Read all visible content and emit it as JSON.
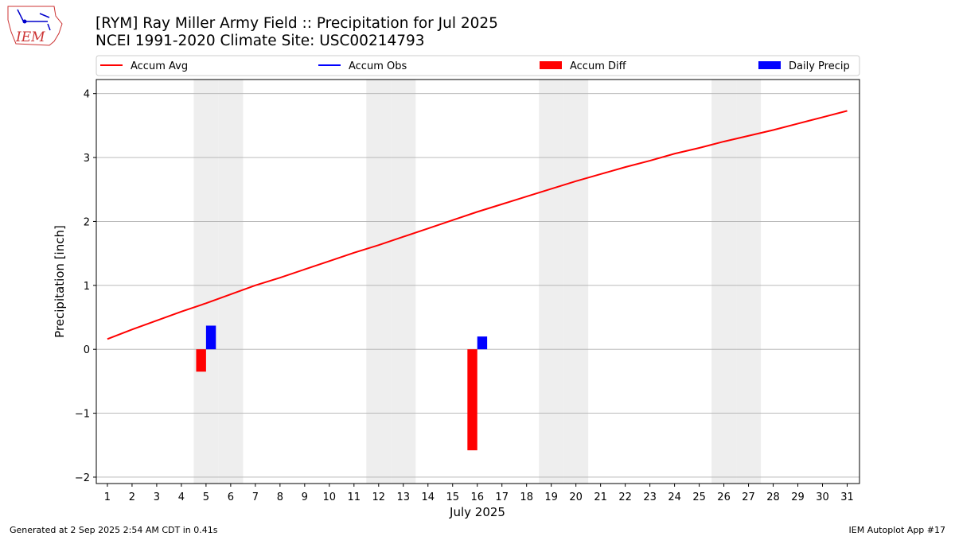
{
  "chart_data": {
    "type": "line",
    "title": "[RYM] Ray Miller Army Field :: Precipitation for Jul 2025",
    "subtitle": "NCEI 1991-2020 Climate Site: USC00214793",
    "xlabel": "July 2025",
    "ylabel": "Precipitation [inch]",
    "x": [
      1,
      2,
      3,
      4,
      5,
      6,
      7,
      8,
      9,
      10,
      11,
      12,
      13,
      14,
      15,
      16,
      17,
      18,
      19,
      20,
      21,
      22,
      23,
      24,
      25,
      26,
      27,
      28,
      29,
      30,
      31
    ],
    "series": [
      {
        "name": "Accum Avg",
        "type": "line",
        "color": "#ff0000",
        "values": [
          0.16,
          0.31,
          0.45,
          0.59,
          0.72,
          0.86,
          1.0,
          1.12,
          1.25,
          1.38,
          1.51,
          1.63,
          1.76,
          1.89,
          2.02,
          2.15,
          2.27,
          2.39,
          2.51,
          2.63,
          2.74,
          2.85,
          2.95,
          3.06,
          3.15,
          3.25,
          3.34,
          3.43,
          3.53,
          3.63,
          3.73
        ]
      },
      {
        "name": "Accum Obs",
        "type": "line",
        "color": "#0000ff",
        "values": [
          null,
          null,
          null,
          null,
          null,
          null,
          null,
          null,
          null,
          null,
          null,
          null,
          null,
          null,
          null,
          null,
          null,
          null,
          null,
          null,
          null,
          null,
          null,
          null,
          null,
          null,
          null,
          null,
          null,
          null,
          null
        ]
      },
      {
        "name": "Accum Diff",
        "type": "bar",
        "color": "#ff0000",
        "values": [
          null,
          null,
          null,
          null,
          -0.35,
          null,
          null,
          null,
          null,
          null,
          null,
          null,
          null,
          null,
          null,
          -1.58,
          null,
          null,
          null,
          null,
          null,
          null,
          null,
          null,
          null,
          null,
          null,
          null,
          null,
          null,
          null
        ]
      },
      {
        "name": "Daily Precip",
        "type": "bar",
        "color": "#0000ff",
        "values": [
          null,
          null,
          null,
          null,
          0.37,
          null,
          null,
          null,
          null,
          null,
          null,
          null,
          null,
          null,
          null,
          0.2,
          null,
          null,
          null,
          null,
          null,
          null,
          null,
          null,
          null,
          null,
          null,
          null,
          null,
          null,
          null
        ]
      }
    ],
    "shaded_days": [
      5,
      6,
      12,
      13,
      19,
      20,
      26,
      27
    ],
    "xlim": [
      0.55,
      31.5
    ],
    "xticks": [
      1,
      2,
      3,
      4,
      5,
      6,
      7,
      8,
      9,
      10,
      11,
      12,
      13,
      14,
      15,
      16,
      17,
      18,
      19,
      20,
      21,
      22,
      23,
      24,
      25,
      26,
      27,
      28,
      29,
      30,
      31
    ],
    "ylim": [
      -2.1,
      4.22
    ],
    "yticks": [
      {
        "value": -2,
        "label": "−2"
      },
      {
        "value": -1,
        "label": "−1"
      },
      0,
      1,
      2,
      3,
      4
    ],
    "grid": true,
    "legend": "top",
    "logo": "IEM",
    "footer_left": "Generated at 2 Sep 2025 2:54 AM CDT in 0.41s",
    "footer_right": "IEM Autoplot App #17"
  }
}
